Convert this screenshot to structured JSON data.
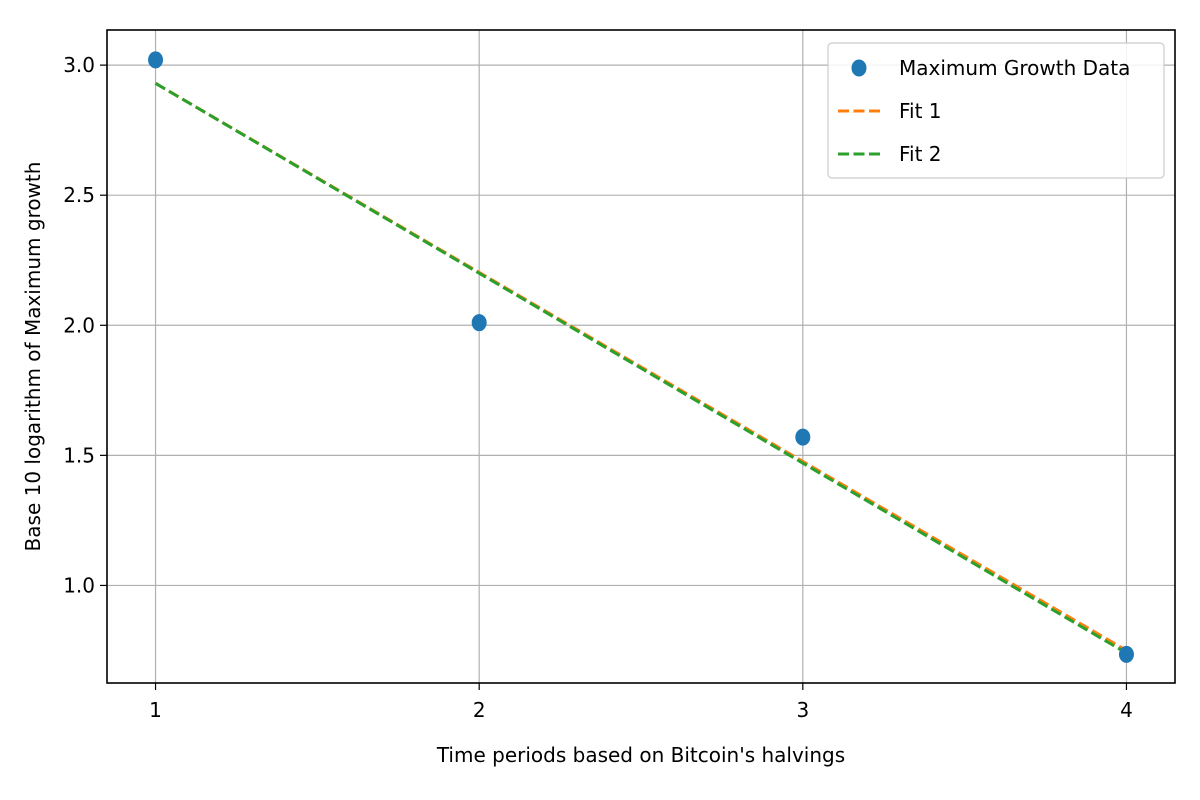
{
  "chart_data": {
    "type": "scatter",
    "title": "",
    "xlabel": "Time periods based on Bitcoin's halvings",
    "ylabel": "Base 10 logarithm of Maximum growth",
    "xlim": [
      0.85,
      4.15
    ],
    "ylim": [
      0.625,
      3.135
    ],
    "x_ticks": [
      1,
      2,
      3,
      4
    ],
    "x_tick_labels": [
      "1",
      "2",
      "3",
      "4"
    ],
    "y_ticks": [
      1.0,
      1.5,
      2.0,
      2.5,
      3.0
    ],
    "y_tick_labels": [
      "1.0",
      "1.5",
      "2.0",
      "2.5",
      "3.0"
    ],
    "grid": true,
    "legend_position": "top-right",
    "series": [
      {
        "name": "Maximum Growth Data",
        "kind": "scatter",
        "color": "#1f77b4",
        "x": [
          1,
          2,
          3,
          4
        ],
        "y": [
          3.02,
          2.01,
          1.57,
          0.735
        ]
      },
      {
        "name": "Fit 1",
        "kind": "line",
        "style": "dashed",
        "color": "#ff7f0e",
        "x": [
          1,
          4
        ],
        "y": [
          2.93,
          0.75
        ]
      },
      {
        "name": "Fit 2",
        "kind": "line",
        "style": "dashed",
        "color": "#2ca02c",
        "x": [
          1,
          4
        ],
        "y": [
          2.93,
          0.74
        ]
      }
    ]
  }
}
